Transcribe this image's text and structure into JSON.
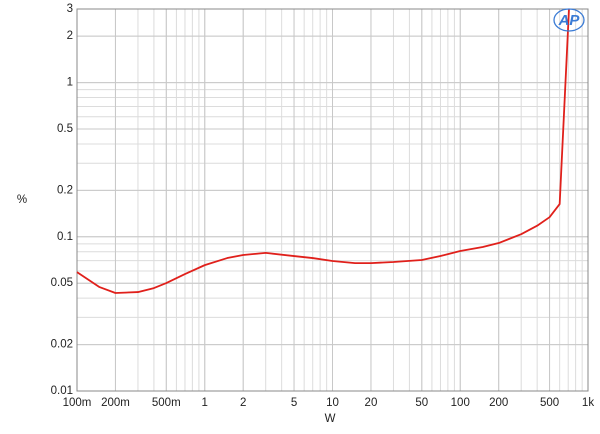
{
  "chart_data": {
    "type": "line",
    "x_label": "W",
    "y_label": "%",
    "logo": "AP",
    "log_x": true,
    "log_y": true,
    "grid": true,
    "minor_grid": true,
    "xlim": [
      0.1,
      1000
    ],
    "ylim": [
      0.01,
      3
    ],
    "xticks": [
      {
        "value": 0.1,
        "label": "100m"
      },
      {
        "value": 0.2,
        "label": "200m"
      },
      {
        "value": 0.5,
        "label": "500m"
      },
      1,
      2,
      5,
      10,
      20,
      50,
      100,
      200,
      500,
      {
        "value": 1000,
        "label": "1k"
      }
    ],
    "yticks": [
      0.01,
      0.02,
      0.05,
      0.1,
      0.2,
      0.5,
      1,
      2,
      3
    ],
    "x": [
      0.1,
      0.15,
      0.2,
      0.3,
      0.4,
      0.5,
      0.7,
      1,
      1.5,
      2,
      3,
      5,
      7,
      10,
      15,
      20,
      30,
      50,
      70,
      100,
      150,
      200,
      300,
      400,
      500,
      600,
      710
    ],
    "series": [
      {
        "color": "#e0201b",
        "values": [
          0.059,
          0.0472,
          0.0432,
          0.0438,
          0.0465,
          0.0501,
          0.0573,
          0.0655,
          0.0728,
          0.0762,
          0.0786,
          0.075,
          0.0728,
          0.0697,
          0.0675,
          0.0675,
          0.0686,
          0.0707,
          0.075,
          0.0809,
          0.0859,
          0.0911,
          0.104,
          0.118,
          0.134,
          0.163,
          3
        ]
      }
    ]
  }
}
